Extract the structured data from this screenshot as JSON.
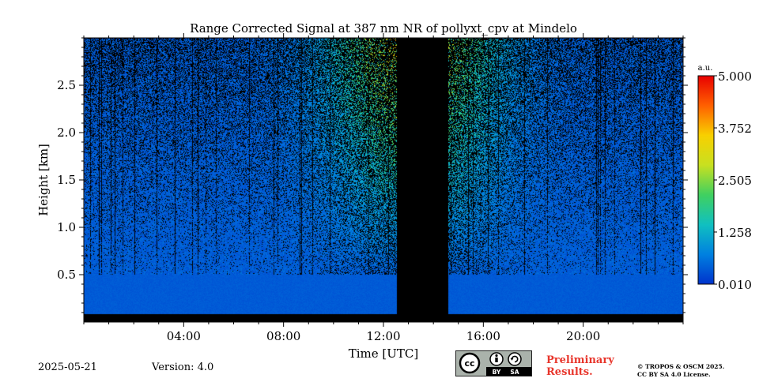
{
  "chart_data": {
    "type": "heatmap",
    "title": "Range Corrected Signal at 387 nm NR of pollyxt_cpv at Mindelo",
    "xlabel": "Time [UTC]",
    "ylabel": "Height [km]",
    "x_range_hours": [
      0,
      24
    ],
    "y_range_km": [
      0,
      3.0
    ],
    "xticks": [
      {
        "value": 4,
        "label": "04:00"
      },
      {
        "value": 8,
        "label": "08:00"
      },
      {
        "value": 12,
        "label": "12:00"
      },
      {
        "value": 16,
        "label": "16:00"
      },
      {
        "value": 20,
        "label": "20:00"
      }
    ],
    "yticks": [
      {
        "value": 0.5,
        "label": "0.5"
      },
      {
        "value": 1.0,
        "label": "1.0"
      },
      {
        "value": 1.5,
        "label": "1.5"
      },
      {
        "value": 2.0,
        "label": "2.0"
      },
      {
        "value": 2.5,
        "label": "2.5"
      }
    ],
    "colorbar": {
      "unit": "a.u.",
      "range": [
        0.01,
        5.0
      ],
      "ticks": [
        {
          "value": 5.0,
          "label": "5.000"
        },
        {
          "value": 3.752,
          "label": "3.752"
        },
        {
          "value": 2.505,
          "label": "2.505"
        },
        {
          "value": 1.258,
          "label": "1.258"
        },
        {
          "value": 0.01,
          "label": "0.010"
        }
      ],
      "colors": [
        "#0033cc",
        "#0080e0",
        "#10c0c0",
        "#40d060",
        "#c8e020",
        "#f8d000",
        "#ff6000",
        "#e80000"
      ]
    },
    "data_gap_hours": [
      12.55,
      14.6
    ],
    "bottom_invalid_km": 0.08,
    "description_values": {
      "near_surface_signal_au": 0.3,
      "near_surface_top_km": 0.5,
      "peak_noisy_signal_au": 3.0,
      "peak_region_hours": [
        8,
        19
      ]
    }
  },
  "footer": {
    "date": "2025-05-21",
    "version": "Version: 4.0",
    "preliminary_line1": "Preliminary",
    "preliminary_line2": "Results.",
    "copyright_line1": "© TROPOS & OSCM 2025.",
    "copyright_line2": "CC BY SA 4.0 License.",
    "cc_label": "cc",
    "by_label": "BY",
    "sa_label": "SA"
  }
}
